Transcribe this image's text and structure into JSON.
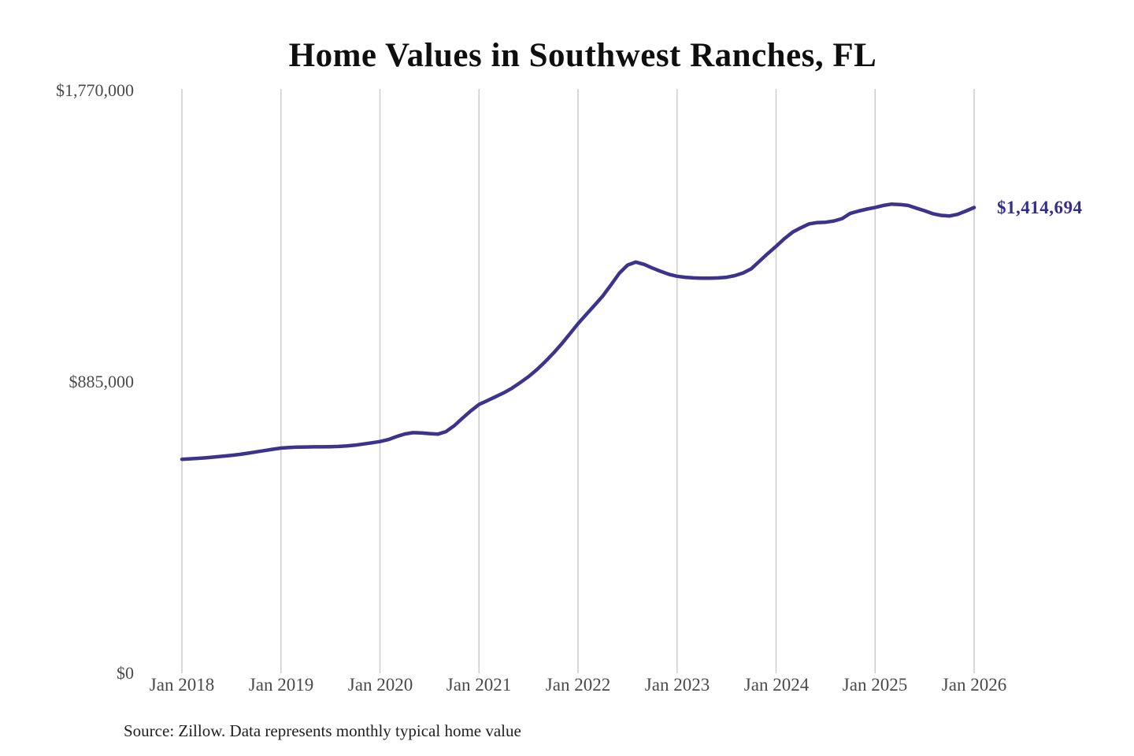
{
  "title": "Home Values in Southwest Ranches, FL",
  "source_note": "Source: Zillow. Data represents monthly typical home value",
  "end_label": "$1,414,694",
  "colors": {
    "line": "#3c348c",
    "grid": "#cccccc",
    "tick_text": "#4a4a4a",
    "end_label_text": "#342d8c",
    "title_text": "#0f0f0f",
    "source_text": "#1f1f1f",
    "background": "#ffffff"
  },
  "chart_data": {
    "type": "line",
    "title": "Home Values in Southwest Ranches, FL",
    "interval": "monthly",
    "x_start": "Jan 2018",
    "x_end": "Jan 2026",
    "x_tick_labels": [
      "Jan 2018",
      "Jan 2019",
      "Jan 2020",
      "Jan 2021",
      "Jan 2022",
      "Jan 2023",
      "Jan 2024",
      "Jan 2025",
      "Jan 2026"
    ],
    "y_tick_labels": [
      "$0",
      "$885,000",
      "$1,770,000"
    ],
    "y_tick_values": [
      0,
      885000,
      1770000
    ],
    "ylim": [
      0,
      1770000
    ],
    "grid": "vertical-only",
    "legend": "none",
    "end_value": 1414694,
    "series": [
      {
        "name": "Typical home value",
        "values": [
          650000,
          651500,
          653000,
          655000,
          657000,
          659500,
          662000,
          665000,
          668500,
          672500,
          676500,
          680500,
          684000,
          686000,
          687000,
          687500,
          688000,
          688000,
          688500,
          689000,
          690500,
          693000,
          696500,
          700000,
          704000,
          710000,
          719000,
          727000,
          731000,
          730000,
          728000,
          726500,
          734000,
          752000,
          775000,
          797000,
          816500,
          828000,
          840000,
          852000,
          866000,
          883000,
          901000,
          922000,
          946000,
          972000,
          1000000,
          1031000,
          1062000,
          1090000,
          1118000,
          1146000,
          1180000,
          1215000,
          1240000,
          1249000,
          1242000,
          1231000,
          1221000,
          1212000,
          1206000,
          1203000,
          1201000,
          1200000,
          1200000,
          1201000,
          1203000,
          1208000,
          1216000,
          1229000,
          1252000,
          1275000,
          1297000,
          1320000,
          1340000,
          1353000,
          1365000,
          1369000,
          1370000,
          1374000,
          1381000,
          1397000,
          1404000,
          1410000,
          1415000,
          1421000,
          1425000,
          1424000,
          1421000,
          1413000,
          1405000,
          1396000,
          1391000,
          1389000,
          1394000,
          1404000,
          1414694
        ]
      }
    ]
  }
}
